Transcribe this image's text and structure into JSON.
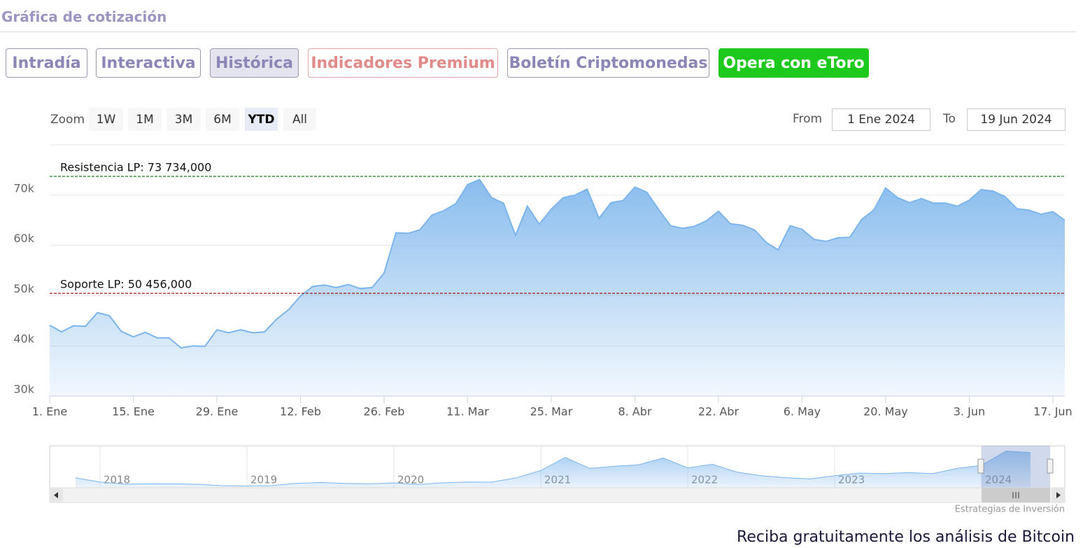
{
  "header": {
    "title": "Gráfica de cotización"
  },
  "tabs": [
    "Intradía",
    "Interactiva",
    "Histórica",
    "Indicadores Premium",
    "Boletín Criptomonedas",
    "Opera con eToro"
  ],
  "range_selector": {
    "zoom_label": "Zoom",
    "buttons": [
      "1W",
      "1M",
      "3M",
      "6M",
      "YTD",
      "All"
    ],
    "from_label": "From",
    "from": "1 Ene 2024",
    "to_label": "To",
    "to": "19 Jun 2024"
  },
  "credits": "Estrategias de Inversión",
  "footer": "Reciba gratuitamente los análisis de Bitcoin",
  "chart_data": [
    {
      "type": "area",
      "color": "#7cb5ec",
      "grid": true,
      "categories": [
        "1. Ene",
        null,
        null,
        null,
        null,
        null,
        null,
        "15. Ene",
        null,
        null,
        null,
        null,
        null,
        null,
        "29. Ene",
        null,
        null,
        null,
        null,
        null,
        null,
        "12. Feb",
        null,
        null,
        null,
        null,
        null,
        null,
        "26. Feb",
        null,
        null,
        null,
        null,
        null,
        null,
        "11. Mar",
        null,
        null,
        null,
        null,
        null,
        null,
        "25. Mar",
        null,
        null,
        null,
        null,
        null,
        null,
        "8. Abr",
        null,
        null,
        null,
        null,
        null,
        null,
        "22. Abr",
        null,
        null,
        null,
        null,
        null,
        null,
        "6. May",
        null,
        null,
        null,
        null,
        null,
        null,
        "20. May",
        null,
        null,
        null,
        null,
        null,
        null,
        "3. Jun",
        null,
        null,
        null,
        null,
        null,
        null,
        "17. Jun",
        null
      ],
      "values": [
        44100,
        42800,
        44000,
        43900,
        46600,
        46000,
        42900,
        41800,
        42700,
        41600,
        41600,
        39600,
        40000,
        39900,
        43200,
        42600,
        43200,
        42600,
        42800,
        45300,
        47200,
        49900,
        51800,
        52100,
        51600,
        52200,
        51400,
        51600,
        54500,
        62500,
        62400,
        63100,
        66000,
        66900,
        68300,
        72100,
        73100,
        69500,
        68400,
        62000,
        67800,
        64200,
        67200,
        69500,
        70000,
        71200,
        65400,
        68500,
        68900,
        71600,
        70600,
        67100,
        63900,
        63400,
        63800,
        64900,
        66800,
        64300,
        64000,
        63100,
        60600,
        59100,
        63900,
        63200,
        61200,
        60800,
        61500,
        61600,
        65200,
        67000,
        71400,
        69500,
        68500,
        69300,
        68400,
        68400,
        67800,
        69000,
        71100,
        70800,
        69700,
        67300,
        67000,
        66200,
        66700,
        65000
      ],
      "ylim": [
        30000,
        80000
      ],
      "yticks": [
        {
          "value": 30000,
          "label": "30k"
        },
        {
          "value": 40000,
          "label": "40k"
        },
        {
          "value": 50000,
          "label": "50k"
        },
        {
          "value": 60000,
          "label": "60k"
        },
        {
          "value": 70000,
          "label": "70k"
        }
      ],
      "annotations": [
        {
          "label": "Resistencia LP: 73 734,000",
          "value": 73734,
          "color": "#1e7a1e"
        },
        {
          "label": "Soporte LP: 50 456,000",
          "value": 50456,
          "color": "#a01818"
        }
      ]
    },
    {
      "type": "area",
      "color": "#7cb5ec",
      "categories": [
        null,
        "2018",
        null,
        null,
        null,
        null,
        null,
        "2019",
        null,
        null,
        null,
        null,
        null,
        "2020",
        null,
        null,
        null,
        null,
        null,
        "2021",
        null,
        null,
        null,
        null,
        null,
        "2022",
        null,
        null,
        null,
        null,
        null,
        "2023",
        null,
        null,
        null,
        null,
        null,
        "2024",
        null,
        null
      ],
      "values": [
        19000,
        11000,
        7000,
        7500,
        7700,
        6600,
        4000,
        3500,
        4000,
        8500,
        10000,
        8300,
        7500,
        9300,
        6400,
        9500,
        11000,
        10800,
        19000,
        33000,
        58000,
        37000,
        41000,
        44000,
        57000,
        38000,
        45000,
        30000,
        23000,
        19400,
        17000,
        23000,
        28000,
        27000,
        29000,
        27000,
        37000,
        43000,
        70000,
        67000
      ],
      "ylim": [
        0,
        80000
      ]
    }
  ]
}
